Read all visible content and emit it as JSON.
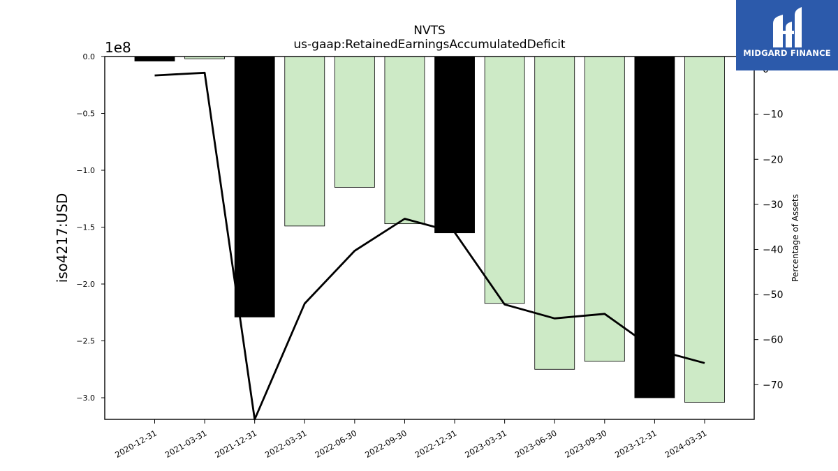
{
  "chart_data": {
    "type": "bar",
    "title": "NVTS",
    "subtitle": "us-gaap:RetainedEarningsAccumulatedDeficit",
    "ylabel": "iso4217:USD",
    "y_offset_label": "1e8",
    "y2label": "Percentage of Assets",
    "categories": [
      "2020-12-31",
      "2021-03-31",
      "2021-12-31",
      "2022-03-31",
      "2022-06-30",
      "2022-09-30",
      "2022-12-31",
      "2023-03-31",
      "2023-06-30",
      "2023-09-30",
      "2023-12-31",
      "2024-03-31"
    ],
    "values": [
      -0.04,
      -0.02,
      -2.29,
      -1.49,
      -1.15,
      -1.47,
      -1.55,
      -2.17,
      -2.75,
      -2.68,
      -3.0,
      -3.04
    ],
    "bar_colors": [
      "#000000",
      "#cdeac6",
      "#000000",
      "#cdeac6",
      "#cdeac6",
      "#cdeac6",
      "#000000",
      "#cdeac6",
      "#cdeac6",
      "#cdeac6",
      "#000000",
      "#cdeac6"
    ],
    "pct_of_assets": [
      -1.4,
      -0.8,
      -77.7,
      -52.0,
      -40.3,
      -33.2,
      -36.2,
      -52.2,
      -55.3,
      -54.3,
      -62.2,
      -65.2
    ],
    "ylim": [
      -3.19,
      0.0
    ],
    "y2lim": [
      -77.7,
      2.8
    ],
    "yticks": [
      0.0,
      -0.5,
      -1.0,
      -1.5,
      -2.0,
      -2.5,
      -3.0
    ],
    "ytick_labels": [
      "0.0",
      "−0.5",
      "−1.0",
      "−1.5",
      "−2.0",
      "−2.5",
      "−3.0"
    ],
    "y2ticks": [
      0,
      -10,
      -20,
      -30,
      -40,
      -50,
      -60,
      -70
    ],
    "y2tick_labels": [
      "0",
      "−10",
      "−20",
      "−30",
      "−40",
      "−50",
      "−60",
      "−70"
    ],
    "grid": false
  },
  "logo": {
    "text": "MIDGARD FINANCE",
    "icon": "midgard-logo-icon",
    "color": "#2c5aab"
  }
}
